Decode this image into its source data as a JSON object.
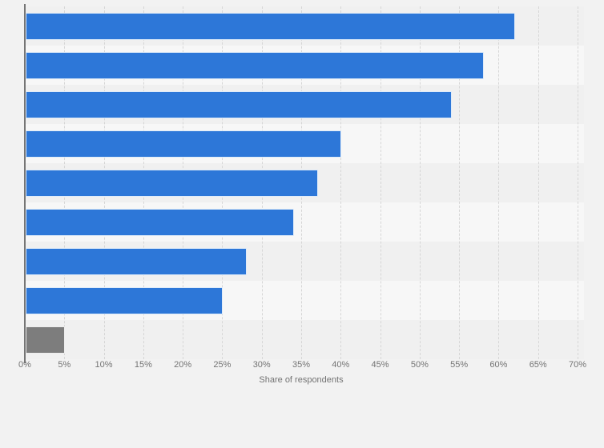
{
  "chart_data": {
    "type": "bar",
    "orientation": "horizontal",
    "values": [
      62,
      58,
      54,
      40,
      37,
      34,
      28,
      25,
      5
    ],
    "value_unit": "%",
    "bar_colors": [
      "#2d77d8",
      "#2d77d8",
      "#2d77d8",
      "#2d77d8",
      "#2d77d8",
      "#2d77d8",
      "#2d77d8",
      "#2d77d8",
      "#7d7d7d"
    ],
    "title": "",
    "xlabel": "Share of respondents",
    "ylabel": "",
    "xlim": [
      0,
      70
    ],
    "x_tick_step": 5,
    "x_tick_labels": [
      "0%",
      "5%",
      "10%",
      "15%",
      "20%",
      "25%",
      "30%",
      "35%",
      "40%",
      "45%",
      "50%",
      "55%",
      "60%",
      "65%",
      "70%"
    ],
    "grid": "dashed-vertical",
    "legend": "none",
    "category_labels_visible": false,
    "colors": {
      "background": "#f2f2f2",
      "row_stripe_odd": "#f0f0f0",
      "row_stripe_even": "#f7f7f7",
      "gridline": "#d6d6d6",
      "axis_line": "#757575",
      "tick_label": "#737373",
      "axis_label": "#737373"
    }
  }
}
